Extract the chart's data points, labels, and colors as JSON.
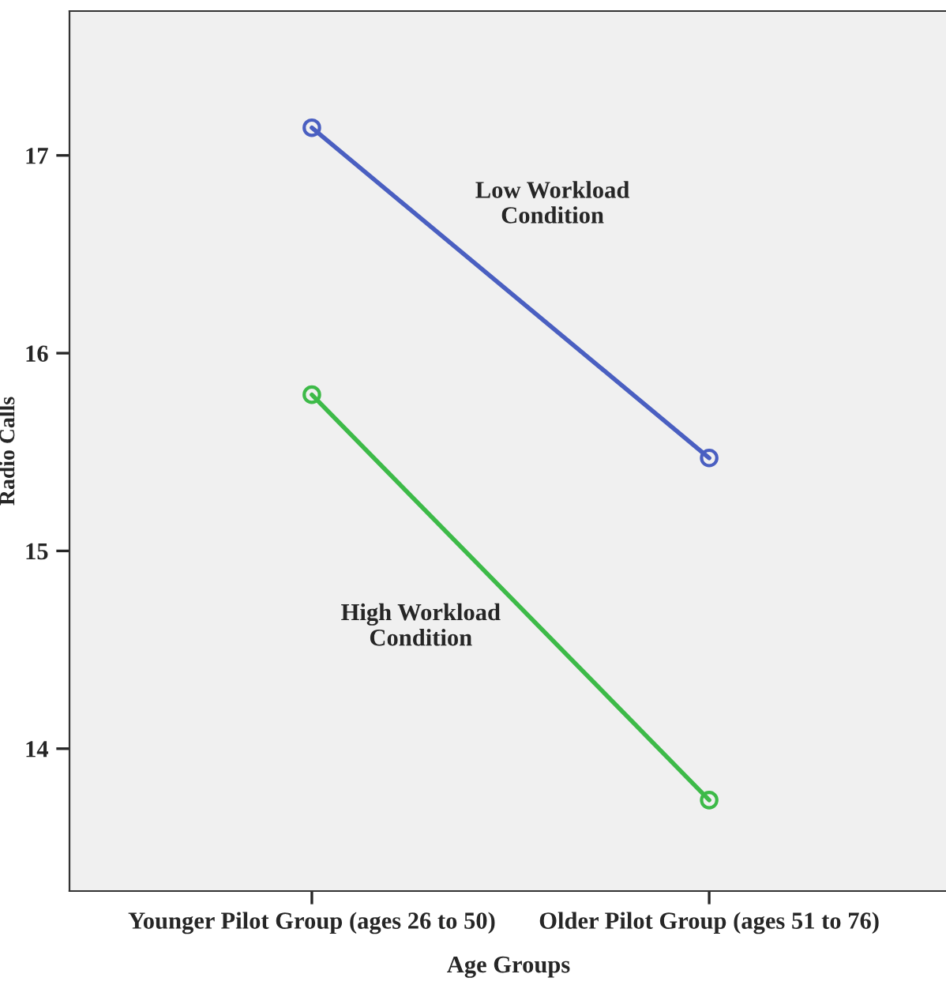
{
  "chart_data": {
    "type": "line",
    "xlabel": "Age Groups",
    "ylabel": "Radio Calls",
    "categories": [
      "Younger Pilot Group (ages 26 to 50)",
      "Older Pilot Group (ages 51 to 76)"
    ],
    "series": [
      {
        "name": "Low Workload\nCondition",
        "color": "#4a5fc1",
        "values": [
          17.14,
          15.47
        ]
      },
      {
        "name": "High Workload\nCondition",
        "color": "#3dba48",
        "values": [
          15.79,
          13.74
        ]
      }
    ],
    "ylim": [
      13.28,
      17.73
    ],
    "yticks": [
      14,
      15,
      16,
      17
    ],
    "grid": false,
    "marker": "circle",
    "line_style": "solid",
    "legend": false
  }
}
